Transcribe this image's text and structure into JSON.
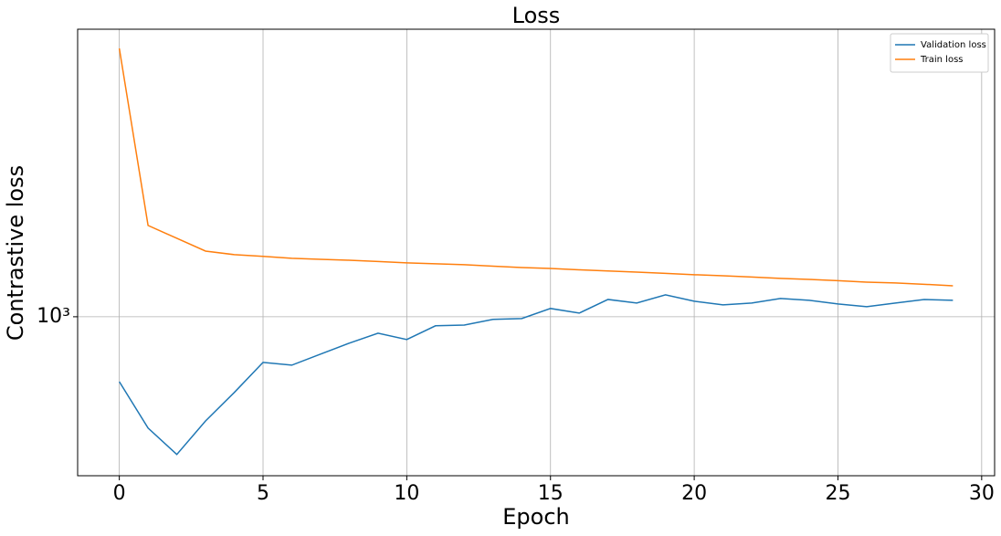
{
  "chart_data": {
    "type": "line",
    "title": "Loss",
    "x_label": "Epoch",
    "y_label": "Contrastive loss",
    "x": [
      0,
      1,
      2,
      3,
      4,
      5,
      6,
      7,
      8,
      9,
      10,
      11,
      12,
      13,
      14,
      15,
      16,
      17,
      18,
      19,
      20,
      21,
      22,
      23,
      24,
      25,
      26,
      27,
      28,
      29
    ],
    "series": [
      {
        "name": "Validation loss",
        "color": "#1f77b4",
        "values": [
          692,
          532,
          458,
          554,
          651,
          772,
          760,
          809,
          861,
          911,
          879,
          950,
          954,
          985,
          990,
          1048,
          1021,
          1103,
          1081,
          1132,
          1092,
          1070,
          1081,
          1109,
          1098,
          1075,
          1059,
          1081,
          1103,
          1098
        ]
      },
      {
        "name": "Train loss",
        "color": "#ff7f0e",
        "values": [
          4579,
          1678,
          1560,
          1451,
          1422,
          1408,
          1393,
          1385,
          1378,
          1368,
          1357,
          1350,
          1343,
          1332,
          1322,
          1315,
          1305,
          1296,
          1288,
          1279,
          1269,
          1262,
          1253,
          1243,
          1236,
          1227,
          1217,
          1211,
          1202,
          1192
        ]
      }
    ],
    "xlim": [
      -1.45,
      30.45
    ],
    "xticks": [
      0,
      5,
      10,
      15,
      20,
      25,
      30
    ],
    "ylim": [
      406,
      5105
    ],
    "yticks": [
      {
        "value": 1000,
        "label": "10³"
      }
    ],
    "y_scale": "log",
    "grid": true,
    "legend": "upper right"
  }
}
